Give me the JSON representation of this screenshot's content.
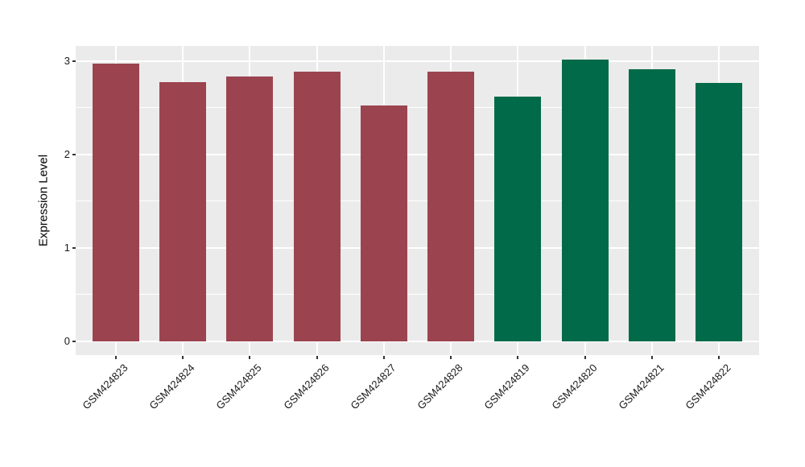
{
  "chart_data": {
    "type": "bar",
    "title": "",
    "xlabel": "",
    "ylabel": "Expression Level",
    "categories": [
      "GSM424823",
      "GSM424824",
      "GSM424825",
      "GSM424826",
      "GSM424827",
      "GSM424828",
      "GSM424819",
      "GSM424820",
      "GSM424821",
      "GSM424822"
    ],
    "values": [
      2.97,
      2.77,
      2.83,
      2.88,
      2.52,
      2.88,
      2.62,
      3.01,
      2.91,
      2.76
    ],
    "colors": [
      "#9B4450",
      "#9B4450",
      "#9B4450",
      "#9B4450",
      "#9B4450",
      "#9B4450",
      "#016A49",
      "#016A49",
      "#016A49",
      "#016A49"
    ],
    "group_colors": {
      "GSM424823-828": "#9B4450",
      "GSM424819-822": "#016A49"
    },
    "yticks": [
      0,
      1,
      2,
      3
    ],
    "minor_yticks": [
      0.5,
      1.5,
      2.5
    ],
    "ylim": [
      -0.15,
      3.16
    ],
    "grid": true,
    "legend_position": "none",
    "panel_background": "#EBEBEB",
    "grid_color": "#FFFFFF"
  }
}
